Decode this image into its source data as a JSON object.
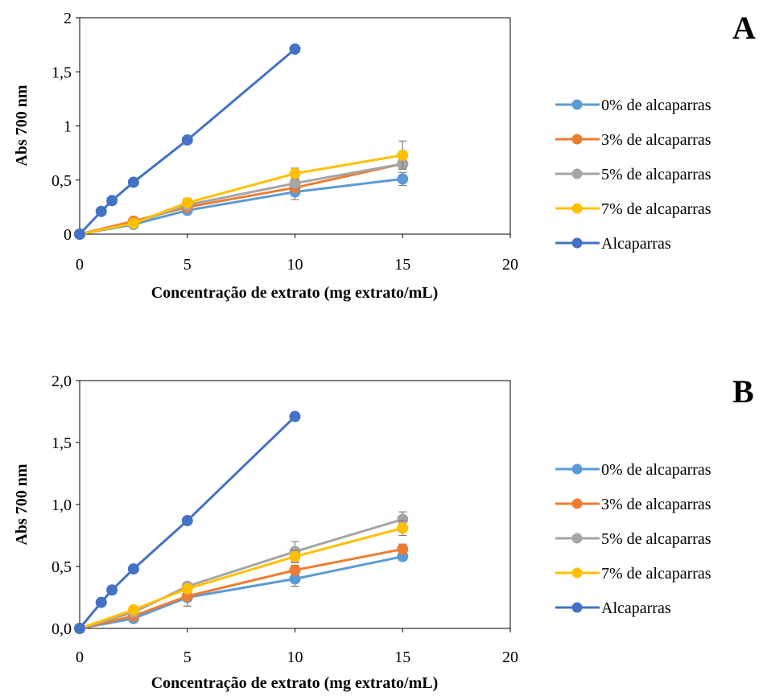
{
  "chart_data": [
    {
      "type": "line",
      "panel_label": "A",
      "xlabel": "Concentração de extrato (mg extrato/mL)",
      "ylabel": "Abs 700 nm",
      "xlim": [
        0,
        20
      ],
      "ylim": [
        0,
        2
      ],
      "xticks": [
        0,
        5,
        10,
        15,
        20
      ],
      "xtick_labels": [
        "0",
        "5",
        "10",
        "15",
        "20"
      ],
      "yticks": [
        0,
        0.5,
        1,
        1.5,
        2
      ],
      "ytick_labels": [
        "0",
        "0,5",
        "1",
        "1,5",
        "2"
      ],
      "grid": false,
      "legend_position": "right",
      "series": [
        {
          "name": "0% de alcaparras",
          "color": "#5B9BD5",
          "x": [
            0,
            2.5,
            5,
            10,
            15
          ],
          "y": [
            0,
            0.09,
            0.22,
            0.39,
            0.51
          ],
          "err": [
            0,
            0.02,
            0.02,
            0.07,
            0.06
          ]
        },
        {
          "name": "3% de alcaparras",
          "color": "#ED7D31",
          "x": [
            0,
            2.5,
            5,
            10,
            15
          ],
          "y": [
            0,
            0.12,
            0.25,
            0.43,
            0.65
          ],
          "err": [
            0,
            0.02,
            0.02,
            0.03,
            0.04
          ]
        },
        {
          "name": "5% de alcaparras",
          "color": "#A5A5A5",
          "x": [
            0,
            2.5,
            5,
            10,
            15
          ],
          "y": [
            0,
            0.1,
            0.27,
            0.47,
            0.65
          ],
          "err": [
            0,
            0.02,
            0.03,
            0.05,
            0.05
          ]
        },
        {
          "name": "7% de alcaparras",
          "color": "#FFC000",
          "x": [
            0,
            2.5,
            5,
            10,
            15
          ],
          "y": [
            0,
            0.1,
            0.29,
            0.56,
            0.73
          ],
          "err": [
            0,
            0.02,
            0.04,
            0.05,
            0.13
          ]
        },
        {
          "name": "Alcaparras",
          "color": "#4472C4",
          "x": [
            0,
            1,
            1.5,
            2.5,
            5,
            10
          ],
          "y": [
            0,
            0.21,
            0.31,
            0.48,
            0.87,
            1.71
          ],
          "err": [
            0,
            0.01,
            0.01,
            0.01,
            0.01,
            0.03
          ]
        }
      ]
    },
    {
      "type": "line",
      "panel_label": "B",
      "xlabel": "Concentração de extrato (mg extrato/mL)",
      "ylabel": "Abs 700 nm",
      "xlim": [
        0,
        20
      ],
      "ylim": [
        0,
        2
      ],
      "xticks": [
        0,
        5,
        10,
        15,
        20
      ],
      "xtick_labels": [
        "0",
        "5",
        "10",
        "15",
        "20"
      ],
      "yticks": [
        0,
        0.5,
        1,
        1.5,
        2
      ],
      "ytick_labels": [
        "0,0",
        "0,5",
        "1,0",
        "1,5",
        "2,0"
      ],
      "grid": false,
      "legend_position": "right",
      "series": [
        {
          "name": "0% de alcaparras",
          "color": "#5B9BD5",
          "x": [
            0,
            2.5,
            5,
            10,
            15
          ],
          "y": [
            0,
            0.08,
            0.25,
            0.4,
            0.58
          ],
          "err": [
            0,
            0.02,
            0.07,
            0.06,
            0.03
          ]
        },
        {
          "name": "3% de alcaparras",
          "color": "#ED7D31",
          "x": [
            0,
            2.5,
            5,
            10,
            15
          ],
          "y": [
            0,
            0.1,
            0.26,
            0.47,
            0.64
          ],
          "err": [
            0,
            0.02,
            0.03,
            0.04,
            0.04
          ]
        },
        {
          "name": "5% de alcaparras",
          "color": "#A5A5A5",
          "x": [
            0,
            2.5,
            5,
            10,
            15
          ],
          "y": [
            0,
            0.13,
            0.34,
            0.62,
            0.88
          ],
          "err": [
            0,
            0.02,
            0.03,
            0.08,
            0.06
          ]
        },
        {
          "name": "7% de alcaparras",
          "color": "#FFC000",
          "x": [
            0,
            2.5,
            5,
            10,
            15
          ],
          "y": [
            0,
            0.15,
            0.32,
            0.58,
            0.81
          ],
          "err": [
            0,
            0.02,
            0.03,
            0.05,
            0.06
          ]
        },
        {
          "name": "Alcaparras",
          "color": "#4472C4",
          "x": [
            0,
            1,
            1.5,
            2.5,
            5,
            10
          ],
          "y": [
            0,
            0.21,
            0.31,
            0.48,
            0.87,
            1.71
          ],
          "err": [
            0,
            0.01,
            0.01,
            0.01,
            0.01,
            0.03
          ]
        }
      ]
    }
  ]
}
